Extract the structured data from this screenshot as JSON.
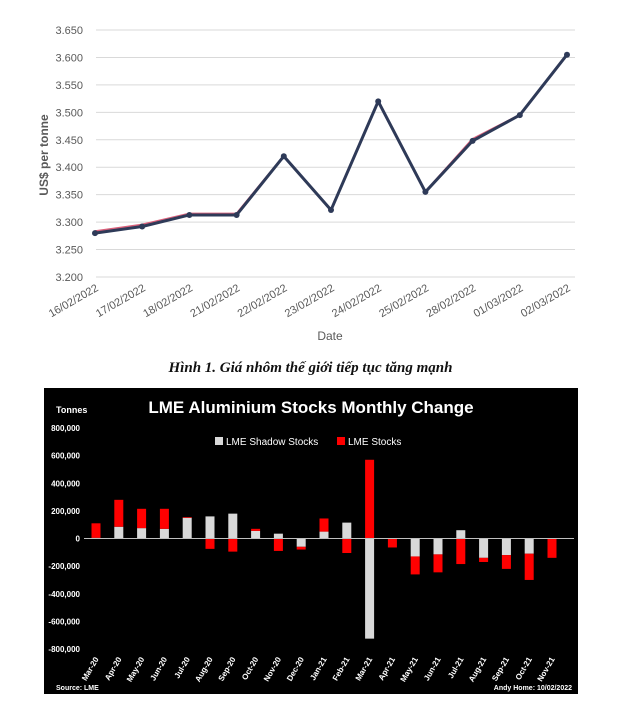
{
  "chart_data": [
    {
      "type": "line",
      "title": "",
      "xlabel": "Date",
      "ylabel": "US$ per tonne",
      "x": [
        "16/02/2022",
        "17/02/2022",
        "18/02/2022",
        "21/02/2022",
        "22/02/2022",
        "23/02/2022",
        "24/02/2022",
        "25/02/2022",
        "28/02/2022",
        "01/03/2022",
        "02/03/2022"
      ],
      "series": [
        {
          "values": [
            3280,
            3292,
            3313,
            3313,
            3420,
            3322,
            3520,
            3355,
            3448,
            3495,
            3605
          ]
        },
        {
          "values": [
            3283,
            3295,
            3315,
            3315,
            3420,
            3322,
            3520,
            3355,
            3451,
            3495,
            3605
          ]
        }
      ],
      "ylim": [
        3200,
        3650
      ],
      "yticks": [
        "3.200",
        "3.250",
        "3.300",
        "3.350",
        "3.400",
        "3.450",
        "3.500",
        "3.550",
        "3.600",
        "3.650"
      ],
      "ytick_values": [
        3200,
        3250,
        3300,
        3350,
        3400,
        3450,
        3500,
        3550,
        3600,
        3650
      ],
      "grid": true,
      "colors": {
        "main": "#2e3a58",
        "under": "#d9607a",
        "grid": "#d9d9d9",
        "axis_text": "#595959"
      }
    },
    {
      "type": "bar",
      "title": "LME Aluminium Stocks Monthly Change",
      "ylabel": "Tonnes",
      "categories": [
        "Mar-20",
        "Apr-20",
        "May-20",
        "Jun-20",
        "Jul-20",
        "Aug-20",
        "Sep-20",
        "Oct-20",
        "Nov-20",
        "Dec-20",
        "Jan-21",
        "Feb-21",
        "Mar-21",
        "Apr-21",
        "May-21",
        "Jun-21",
        "Jul-21",
        "Aug-21",
        "Sep-21",
        "Oct-21",
        "Nov-21"
      ],
      "series": [
        {
          "name": "LME Shadow Stocks",
          "color": "#d9d9d9",
          "values": [
            5000,
            85000,
            75000,
            70000,
            150000,
            160000,
            180000,
            55000,
            35000,
            -60000,
            50000,
            115000,
            -725000,
            0,
            -130000,
            -115000,
            60000,
            -140000,
            -120000,
            -110000,
            0
          ]
        },
        {
          "name": "LME Stocks",
          "color": "#ff0000",
          "values": [
            105000,
            195000,
            140000,
            145000,
            5000,
            -75000,
            -95000,
            15000,
            -90000,
            -20000,
            95000,
            -105000,
            570000,
            -65000,
            -130000,
            -130000,
            -185000,
            -30000,
            -100000,
            -190000,
            -140000
          ]
        }
      ],
      "ylim": [
        -800000,
        800000
      ],
      "yticks": [
        "-800,000",
        "-600,000",
        "-400,000",
        "-200,000",
        "0",
        "200,000",
        "400,000",
        "600,000",
        "800,000"
      ],
      "ytick_values": [
        -800000,
        -600000,
        -400000,
        -200000,
        0,
        200000,
        400000,
        600000,
        800000
      ],
      "legend": "top-center",
      "source": "Source: LME",
      "credit": "Andy Home: 10/02/2022"
    }
  ],
  "caption": "Hình 1. Giá nhôm thế giới tiếp tục tăng mạnh"
}
